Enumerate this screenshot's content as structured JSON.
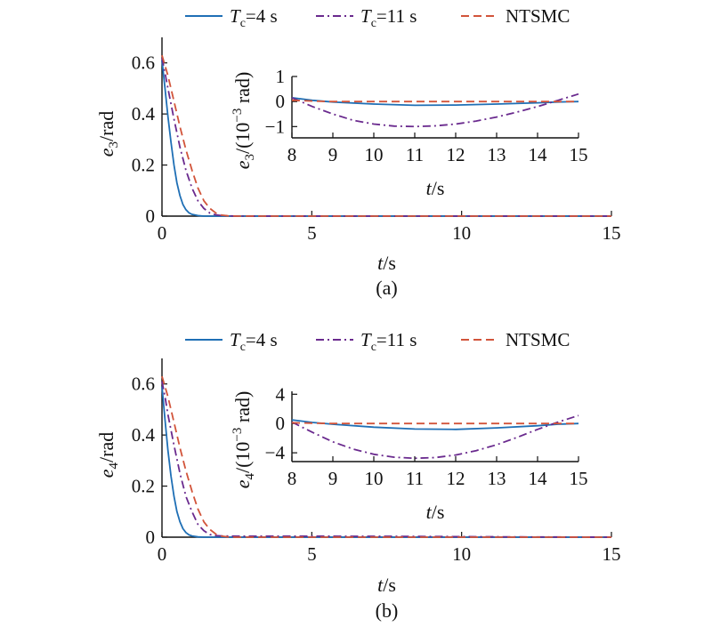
{
  "legend": [
    {
      "key": "tc4",
      "label_main": "T",
      "label_sub": "c",
      "label_rest": "=4 s",
      "color": "#1f6fb5",
      "dash": "solid"
    },
    {
      "key": "tc11",
      "label_main": "T",
      "label_sub": "c",
      "label_rest": "=11 s",
      "color": "#6a2a8e",
      "dash": "dashdot"
    },
    {
      "key": "ntsmc",
      "label_main": "NTSMC",
      "label_sub": "",
      "label_rest": "",
      "color": "#d2543a",
      "dash": "dashed"
    }
  ],
  "chart_data": [
    {
      "id": "a",
      "type": "line",
      "caption": "(a)",
      "xlabel": {
        "var": "t",
        "rest": "/s"
      },
      "ylabel": {
        "var": "e",
        "sub": "3",
        "rest": "/rad"
      },
      "xlim": [
        0,
        15
      ],
      "ylim": [
        0,
        0.7
      ],
      "xticks": [
        "0",
        "5",
        "10",
        "15"
      ],
      "xtick_values": [
        0,
        5,
        10,
        15
      ],
      "yticks": [
        "0",
        "0.2",
        "0.4",
        "0.6"
      ],
      "ytick_values": [
        0,
        0.2,
        0.4,
        0.6
      ],
      "series": [
        {
          "key": "tc4",
          "x": [
            0,
            0.1,
            0.2,
            0.3,
            0.4,
            0.5,
            0.6,
            0.7,
            0.8,
            0.9,
            1.0,
            1.2,
            1.4,
            1.6,
            2,
            3,
            5,
            8,
            10,
            12,
            15
          ],
          "y": [
            0.61,
            0.5,
            0.39,
            0.29,
            0.2,
            0.13,
            0.08,
            0.045,
            0.025,
            0.013,
            0.007,
            0.002,
            0,
            0,
            0,
            0,
            0,
            0,
            0,
            0,
            0
          ]
        },
        {
          "key": "tc11",
          "x": [
            0,
            0.1,
            0.2,
            0.4,
            0.6,
            0.8,
            1.0,
            1.2,
            1.4,
            1.6,
            1.8,
            2.0,
            2.5,
            3,
            5,
            8,
            10,
            12,
            15
          ],
          "y": [
            0.62,
            0.56,
            0.5,
            0.38,
            0.27,
            0.18,
            0.11,
            0.06,
            0.03,
            0.012,
            0.005,
            0.002,
            0,
            0,
            0,
            0,
            0,
            0,
            0
          ]
        },
        {
          "key": "ntsmc",
          "x": [
            0,
            0.1,
            0.2,
            0.4,
            0.6,
            0.8,
            1.0,
            1.2,
            1.4,
            1.6,
            1.8,
            2.0,
            2.2,
            2.5,
            3,
            5,
            8,
            10,
            12,
            15
          ],
          "y": [
            0.63,
            0.59,
            0.55,
            0.45,
            0.35,
            0.26,
            0.18,
            0.11,
            0.06,
            0.03,
            0.012,
            0.004,
            0.001,
            0,
            0,
            0,
            0,
            0,
            0,
            0
          ]
        }
      ],
      "inset": {
        "xlabel": {
          "var": "t",
          "rest": "/s"
        },
        "ylabel": {
          "var": "e",
          "sub": "3",
          "rest_pre": "/(10",
          "sup": "−3",
          "rest_post": " rad)"
        },
        "xlim": [
          8,
          15
        ],
        "ylim": [
          -1.45,
          1.0
        ],
        "xticks": [
          "8",
          "9",
          "10",
          "11",
          "12",
          "13",
          "14",
          "15"
        ],
        "xtick_values": [
          8,
          9,
          10,
          11,
          12,
          13,
          14,
          15
        ],
        "yticks": [
          "−1",
          "0",
          "1"
        ],
        "ytick_values": [
          -1,
          0,
          1
        ],
        "series": [
          {
            "key": "tc4",
            "x": [
              8,
              8.5,
              9,
              10,
              11,
              12,
              13,
              14,
              14.5,
              15
            ],
            "y": [
              0.15,
              0.05,
              -0.02,
              -0.1,
              -0.15,
              -0.14,
              -0.1,
              -0.05,
              -0.02,
              0
            ]
          },
          {
            "key": "tc11",
            "x": [
              8,
              8.5,
              9,
              9.5,
              10,
              10.5,
              11,
              11.5,
              12,
              12.5,
              13,
              13.5,
              14,
              14.5,
              15
            ],
            "y": [
              0.15,
              -0.2,
              -0.5,
              -0.75,
              -0.9,
              -0.98,
              -1.0,
              -0.97,
              -0.9,
              -0.78,
              -0.62,
              -0.42,
              -0.2,
              0.05,
              0.3
            ]
          },
          {
            "key": "ntsmc",
            "x": [
              8,
              8.5,
              9,
              10,
              11,
              12,
              13,
              14,
              15
            ],
            "y": [
              0.05,
              0.02,
              0,
              0,
              0,
              0,
              0,
              0,
              0
            ]
          }
        ]
      }
    },
    {
      "id": "b",
      "type": "line",
      "caption": "(b)",
      "xlabel": {
        "var": "t",
        "rest": "/s"
      },
      "ylabel": {
        "var": "e",
        "sub": "4",
        "rest": "/rad"
      },
      "xlim": [
        0,
        15
      ],
      "ylim": [
        0,
        0.7
      ],
      "xticks": [
        "0",
        "5",
        "10",
        "15"
      ],
      "xtick_values": [
        0,
        5,
        10,
        15
      ],
      "yticks": [
        "0",
        "0.2",
        "0.4",
        "0.6"
      ],
      "ytick_values": [
        0,
        0.2,
        0.4,
        0.6
      ],
      "series": [
        {
          "key": "tc4",
          "x": [
            0,
            0.1,
            0.2,
            0.3,
            0.4,
            0.5,
            0.6,
            0.7,
            0.8,
            0.9,
            1.0,
            1.2,
            1.4,
            1.6,
            2,
            3,
            5,
            8,
            10,
            12,
            15
          ],
          "y": [
            0.59,
            0.46,
            0.34,
            0.24,
            0.16,
            0.1,
            0.06,
            0.033,
            0.018,
            0.009,
            0.005,
            0.001,
            0,
            0,
            0,
            0,
            0,
            0,
            0,
            0,
            0
          ]
        },
        {
          "key": "tc11",
          "x": [
            0,
            0.1,
            0.2,
            0.4,
            0.6,
            0.8,
            1.0,
            1.2,
            1.4,
            1.6,
            1.8,
            2.0,
            2.5,
            3,
            5,
            8,
            10,
            12,
            15
          ],
          "y": [
            0.61,
            0.55,
            0.48,
            0.36,
            0.25,
            0.16,
            0.1,
            0.05,
            0.025,
            0.01,
            0.006,
            0.005,
            0.004,
            0.004,
            0.004,
            0.003,
            0.002,
            0.001,
            0
          ]
        },
        {
          "key": "ntsmc",
          "x": [
            0,
            0.1,
            0.2,
            0.4,
            0.6,
            0.8,
            1.0,
            1.2,
            1.4,
            1.6,
            1.8,
            2.0,
            2.2,
            2.5,
            3,
            5,
            8,
            10,
            12,
            15
          ],
          "y": [
            0.63,
            0.59,
            0.55,
            0.45,
            0.35,
            0.26,
            0.18,
            0.11,
            0.06,
            0.03,
            0.012,
            0.004,
            0.001,
            0,
            0,
            0,
            0,
            0,
            0,
            0
          ]
        }
      ],
      "inset": {
        "xlabel": {
          "var": "t",
          "rest": "/s"
        },
        "ylabel": {
          "var": "e",
          "sub": "4",
          "rest_pre": "/(10",
          "sup": "−3",
          "rest_post": " rad)"
        },
        "xlim": [
          8,
          15
        ],
        "ylim": [
          -5.2,
          4.4
        ],
        "xticks": [
          "8",
          "9",
          "10",
          "11",
          "12",
          "13",
          "14",
          "15"
        ],
        "xtick_values": [
          8,
          9,
          10,
          11,
          12,
          13,
          14,
          15
        ],
        "yticks": [
          "−4",
          "0",
          "4"
        ],
        "ytick_values": [
          -4,
          0,
          4
        ],
        "series": [
          {
            "key": "tc4",
            "x": [
              8,
              8.5,
              9,
              10,
              11,
              12,
              13,
              14,
              14.5,
              15
            ],
            "y": [
              0.5,
              0.15,
              -0.1,
              -0.5,
              -0.75,
              -0.8,
              -0.6,
              -0.3,
              -0.1,
              0
            ]
          },
          {
            "key": "tc11",
            "x": [
              8,
              8.5,
              9,
              9.5,
              10,
              10.5,
              11,
              11.5,
              12,
              12.5,
              13,
              13.5,
              14,
              14.5,
              15
            ],
            "y": [
              0.2,
              -1.2,
              -2.5,
              -3.5,
              -4.2,
              -4.6,
              -4.75,
              -4.65,
              -4.3,
              -3.7,
              -2.9,
              -1.9,
              -0.8,
              0.2,
              1.1
            ]
          },
          {
            "key": "ntsmc",
            "x": [
              8,
              8.5,
              9,
              10,
              11,
              12,
              13,
              14,
              15
            ],
            "y": [
              0.1,
              0.05,
              0,
              0,
              0,
              0,
              0,
              0,
              0
            ]
          }
        ]
      }
    }
  ]
}
